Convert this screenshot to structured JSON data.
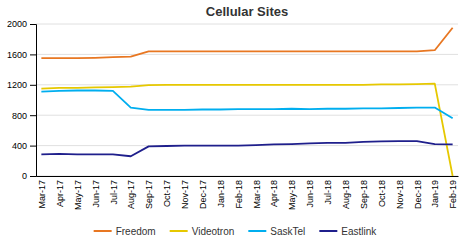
{
  "chart_data": {
    "type": "line",
    "title": "Cellular Sites",
    "categories": [
      "Mar-17",
      "Apr-17",
      "May-17",
      "Jun-17",
      "Jul-17",
      "Aug-17",
      "Sep-17",
      "Oct-17",
      "Nov-17",
      "Dec-17",
      "Jan-18",
      "Feb-18",
      "Mar-18",
      "Apr-18",
      "May-18",
      "Jun-18",
      "Jul-18",
      "Aug-18",
      "Sep-18",
      "Oct-18",
      "Nov-18",
      "Dec-18",
      "Jan-19",
      "Feb-19"
    ],
    "series": [
      {
        "name": "Freedom",
        "color": "#E87722",
        "values": [
          1550,
          1550,
          1550,
          1555,
          1565,
          1570,
          1640,
          1640,
          1640,
          1640,
          1640,
          1640,
          1640,
          1640,
          1640,
          1640,
          1640,
          1640,
          1640,
          1640,
          1640,
          1640,
          1655,
          1950
        ]
      },
      {
        "name": "Videotron",
        "color": "#E6C800",
        "values": [
          1150,
          1160,
          1160,
          1165,
          1170,
          1175,
          1195,
          1200,
          1200,
          1200,
          1200,
          1200,
          1200,
          1200,
          1200,
          1200,
          1200,
          1200,
          1200,
          1205,
          1205,
          1210,
          1215,
          0
        ]
      },
      {
        "name": "SaskTel",
        "color": "#00AEEF",
        "values": [
          1110,
          1120,
          1125,
          1125,
          1120,
          900,
          870,
          870,
          870,
          875,
          875,
          880,
          880,
          880,
          885,
          880,
          885,
          885,
          890,
          890,
          895,
          900,
          900,
          760
        ]
      },
      {
        "name": "Eastlink",
        "color": "#1F1F8C",
        "values": [
          285,
          290,
          285,
          285,
          285,
          260,
          390,
          395,
          400,
          400,
          400,
          400,
          405,
          415,
          420,
          430,
          435,
          435,
          450,
          455,
          460,
          460,
          420,
          415
        ]
      }
    ],
    "ylim": [
      0,
      2000
    ],
    "yticks": [
      0,
      400,
      800,
      1200,
      1600,
      2000
    ],
    "grid": true,
    "legend": "bottom"
  }
}
